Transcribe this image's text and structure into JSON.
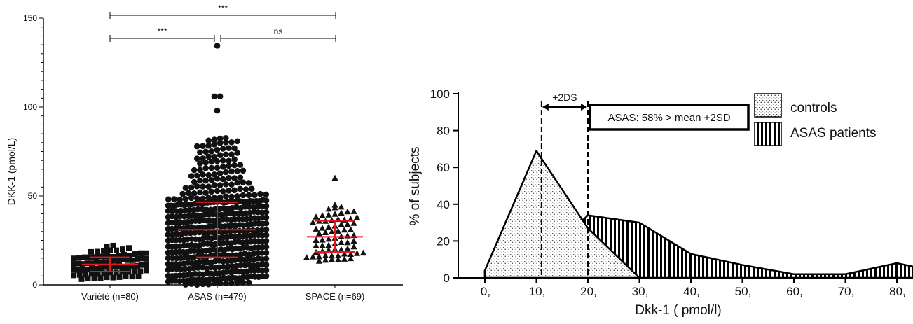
{
  "chart_data": [
    {
      "type": "scatter",
      "ylabel": "DKK-1 (pmol/L)",
      "ylim": [
        0,
        150
      ],
      "yticks": [
        0,
        50,
        100,
        150
      ],
      "grid": false,
      "categories": [
        "Variété (n=80)",
        "ASAS (n=479)",
        "SPACE (n=69)"
      ],
      "series": [
        {
          "category": "Variété (n=80)",
          "marker": "square",
          "n": 80,
          "median": 11.5,
          "q1": 7.5,
          "q3": 15.5,
          "min": 3,
          "max": 22
        },
        {
          "category": "ASAS (n=479)",
          "marker": "circle",
          "n": 479,
          "median": 31,
          "q1": 15.5,
          "q3": 46.5,
          "min": 0,
          "max": 83,
          "outliers": [
            134.5,
            106,
            106,
            98
          ]
        },
        {
          "category": "SPACE (n=69)",
          "marker": "triangle",
          "n": 69,
          "median": 27,
          "q1": 18.5,
          "q3": 36,
          "min": 13,
          "max": 45,
          "outliers": [
            60
          ]
        }
      ],
      "annotations": [
        {
          "from": "Variété (n=80)",
          "to": "SPACE (n=69)",
          "label": "***"
        },
        {
          "from": "Variété (n=80)",
          "to": "ASAS (n=479)",
          "label": "***"
        },
        {
          "from": "ASAS (n=479)",
          "to": "SPACE (n=69)",
          "label": "ns"
        }
      ]
    },
    {
      "type": "area",
      "xlabel": "Dkk-1 ( pmol/l)",
      "ylabel": "% of subjects",
      "xlim": [
        -7,
        85
      ],
      "ylim": [
        0,
        100
      ],
      "xticks": [
        0,
        10,
        20,
        30,
        40,
        50,
        60,
        70,
        80
      ],
      "xtick_labels": [
        "0,",
        "10,",
        "20,",
        "30,",
        "40,",
        "50,",
        "60,",
        "70,",
        "80,"
      ],
      "yticks": [
        0,
        20,
        40,
        60,
        80,
        100
      ],
      "grid": false,
      "legend_position": "top-right",
      "series": [
        {
          "name": "controls",
          "pattern": "dots",
          "x": [
            0,
            10,
            20,
            30
          ],
          "y": [
            4,
            69,
            27,
            0
          ]
        },
        {
          "name": "ASAS patients",
          "pattern": "vertical-stripes",
          "x": [
            0,
            10,
            20,
            30,
            40,
            50,
            60,
            70,
            80,
            85
          ],
          "y": [
            4,
            7,
            34,
            30,
            13,
            7,
            2,
            2,
            8,
            5
          ]
        }
      ],
      "reference_lines": [
        11,
        20
      ],
      "annotations": [
        {
          "label": "+2DS",
          "from": 11,
          "to": 20
        },
        {
          "label": "ASAS: 58% > mean +2SD"
        }
      ]
    }
  ]
}
